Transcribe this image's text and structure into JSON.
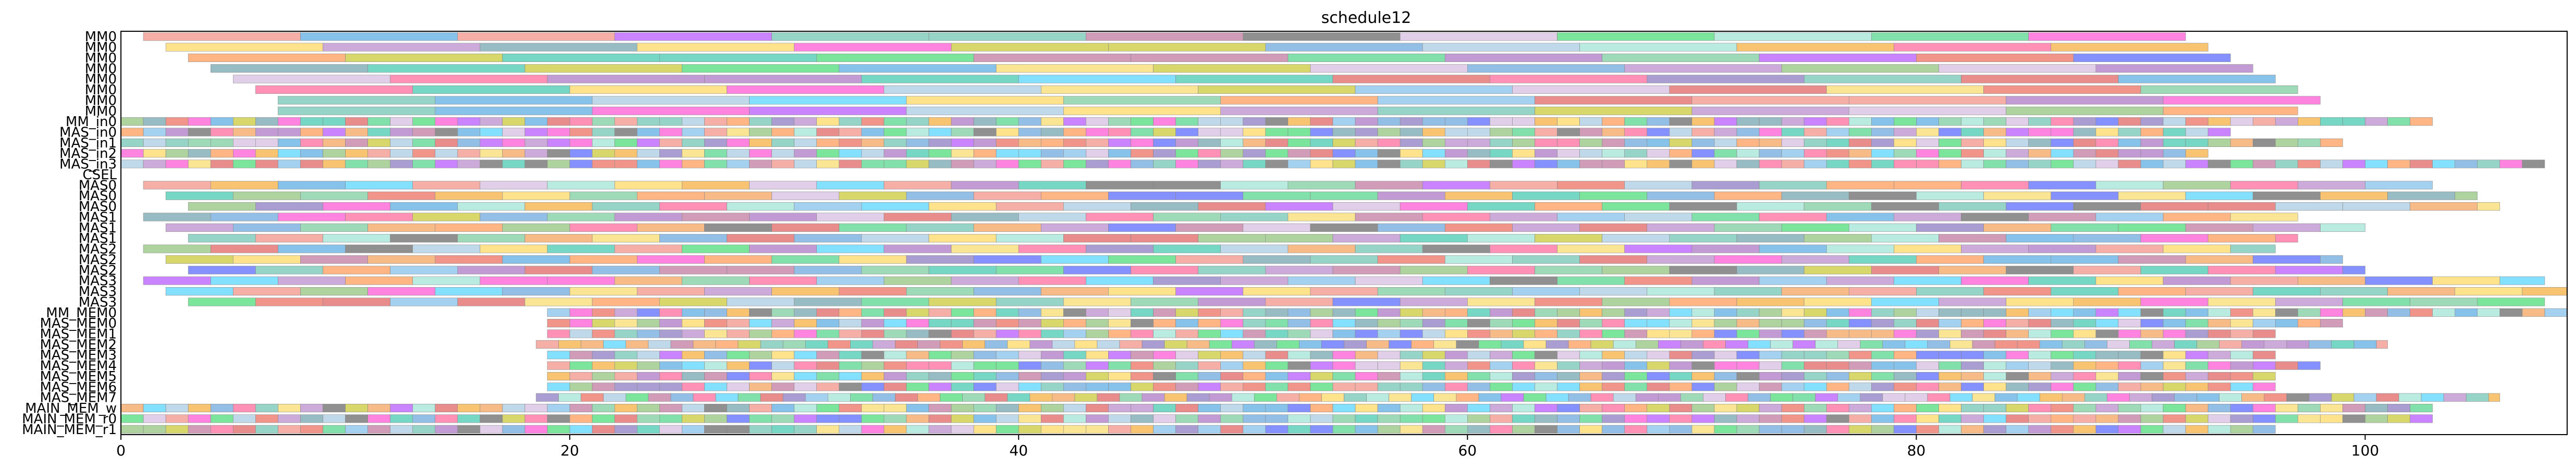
{
  "chart_data": {
    "type": "gantt",
    "title": "schedule12",
    "xlim": [
      0,
      109
    ],
    "x_ticks": [
      0,
      20,
      40,
      60,
      80,
      100
    ],
    "grid": false,
    "rows": [
      "MM0",
      "MM0",
      "MM0",
      "MM0",
      "MM0",
      "MM0",
      "MM0",
      "MM0",
      "MM_in0",
      "MAS_in0",
      "MAS_in1",
      "MAS_in2",
      "MAS_in3",
      "CSEL",
      "MAS0",
      "MAS0",
      "MAS0",
      "MAS1",
      "MAS1",
      "MAS1",
      "MAS2",
      "MAS2",
      "MAS2",
      "MAS3",
      "MAS3",
      "MAS3",
      "MM_MEM0",
      "MAS_MEM0",
      "MAS_MEM1",
      "MAS_MEM2",
      "MAS_MEM3",
      "MAS_MEM4",
      "MAS_MEM5",
      "MAS_MEM6",
      "MAS_MEM7",
      "MAIN_MEM_w",
      "MAIN_MEM_r0",
      "MAIN_MEM_r1"
    ],
    "row_profiles": [
      {
        "start": 1.0,
        "end": 92.0,
        "dur": 7.0,
        "gap": 0.0
      },
      {
        "start": 2.0,
        "end": 93.0,
        "dur": 7.0,
        "gap": 0.0
      },
      {
        "start": 3.0,
        "end": 94.0,
        "dur": 7.0,
        "gap": 0.0
      },
      {
        "start": 4.0,
        "end": 95.0,
        "dur": 7.0,
        "gap": 0.0
      },
      {
        "start": 5.0,
        "end": 96.0,
        "dur": 7.0,
        "gap": 0.0
      },
      {
        "start": 6.0,
        "end": 97.0,
        "dur": 7.0,
        "gap": 0.0
      },
      {
        "start": 7.0,
        "end": 98.0,
        "dur": 7.0,
        "gap": 0.0
      },
      {
        "start": 7.0,
        "end": 97.0,
        "dur": 7.0,
        "gap": 0.0
      },
      {
        "start": 0.0,
        "end": 103.0,
        "dur": 1.0,
        "gap": 0.0
      },
      {
        "start": 0.0,
        "end": 94.0,
        "dur": 1.0,
        "gap": 0.0
      },
      {
        "start": 0.0,
        "end": 99.0,
        "dur": 1.0,
        "gap": 0.0
      },
      {
        "start": 0.0,
        "end": 93.0,
        "dur": 1.0,
        "gap": 0.0
      },
      {
        "start": 0.0,
        "end": 108.0,
        "dur": 1.0,
        "gap": 0.0
      },
      {
        "start": 0.0,
        "end": 0.0,
        "dur": 1.0,
        "gap": 0.0
      },
      {
        "start": 1.0,
        "end": 103.0,
        "dur": 3.0,
        "gap": 0.0
      },
      {
        "start": 2.0,
        "end": 105.0,
        "dur": 3.0,
        "gap": 0.0
      },
      {
        "start": 3.0,
        "end": 106.0,
        "dur": 3.0,
        "gap": 0.0
      },
      {
        "start": 1.0,
        "end": 97.0,
        "dur": 3.0,
        "gap": 0.0
      },
      {
        "start": 2.0,
        "end": 100.0,
        "dur": 3.0,
        "gap": 0.0
      },
      {
        "start": 3.0,
        "end": 97.0,
        "dur": 3.0,
        "gap": 0.0
      },
      {
        "start": 1.0,
        "end": 96.0,
        "dur": 3.0,
        "gap": 0.0
      },
      {
        "start": 2.0,
        "end": 99.0,
        "dur": 3.0,
        "gap": 0.0
      },
      {
        "start": 3.0,
        "end": 100.0,
        "dur": 3.0,
        "gap": 0.0
      },
      {
        "start": 1.0,
        "end": 108.0,
        "dur": 3.0,
        "gap": 0.0
      },
      {
        "start": 2.0,
        "end": 109.0,
        "dur": 3.0,
        "gap": 0.0
      },
      {
        "start": 3.0,
        "end": 108.0,
        "dur": 3.0,
        "gap": 0.0
      },
      {
        "start": 19.0,
        "end": 109.0,
        "dur": 1.0,
        "gap": 0.0
      },
      {
        "start": 19.0,
        "end": 99.0,
        "dur": 1.0,
        "gap": 0.0
      },
      {
        "start": 19.0,
        "end": 96.0,
        "dur": 1.0,
        "gap": 0.0
      },
      {
        "start": 18.5,
        "end": 101.0,
        "dur": 1.0,
        "gap": 0.0
      },
      {
        "start": 19.0,
        "end": 96.0,
        "dur": 1.0,
        "gap": 0.0
      },
      {
        "start": 19.0,
        "end": 98.0,
        "dur": 1.0,
        "gap": 0.0
      },
      {
        "start": 19.0,
        "end": 96.0,
        "dur": 1.0,
        "gap": 0.0
      },
      {
        "start": 19.0,
        "end": 96.0,
        "dur": 1.0,
        "gap": 0.0
      },
      {
        "start": 18.5,
        "end": 106.0,
        "dur": 1.0,
        "gap": 0.0
      },
      {
        "start": 0.0,
        "end": 103.0,
        "dur": 1.0,
        "gap": 0.0
      },
      {
        "start": 0.0,
        "end": 103.0,
        "dur": 1.0,
        "gap": 0.0
      },
      {
        "start": 0.0,
        "end": 96.0,
        "dur": 1.0,
        "gap": 0.0
      }
    ],
    "palette": [
      "#e06666",
      "#f4a460",
      "#93c47d",
      "#6fa8dc",
      "#8e7cc3",
      "#c27ba0",
      "#ffd966",
      "#76a5af",
      "#ff6b9d",
      "#5dade2",
      "#58d68d",
      "#f5b041",
      "#af7ac5",
      "#48c9b0",
      "#ec7063",
      "#a9cce3",
      "#7dcea0",
      "#f7dc6f",
      "#bb8fce",
      "#85c1e9",
      "#f1948a",
      "#73c6b6",
      "#d7bde2",
      "#a3e4d7",
      "#5b6cff",
      "#ff5bd6",
      "#4ddc7a",
      "#c9c93a",
      "#6b6b6b",
      "#ff9e5b",
      "#5bd6ff",
      "#b85bff"
    ]
  }
}
